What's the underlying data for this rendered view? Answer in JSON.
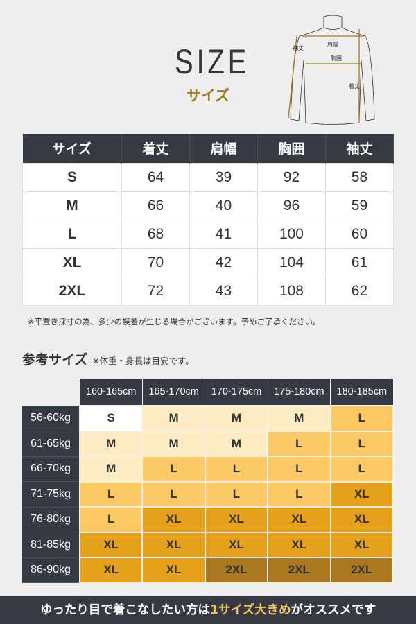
{
  "header": {
    "title": "SIZE",
    "subtitle": "サイズ"
  },
  "diagram": {
    "labels": {
      "shoulder": "肩幅",
      "chest": "胸囲",
      "length": "着丈",
      "sleeve": "袖丈"
    }
  },
  "size_table": {
    "columns": [
      "サイズ",
      "着丈",
      "肩幅",
      "胸囲",
      "袖丈"
    ],
    "rows": [
      [
        "S",
        "64",
        "39",
        "92",
        "58"
      ],
      [
        "M",
        "66",
        "40",
        "96",
        "59"
      ],
      [
        "L",
        "68",
        "41",
        "100",
        "60"
      ],
      [
        "XL",
        "70",
        "42",
        "104",
        "61"
      ],
      [
        "2XL",
        "72",
        "43",
        "108",
        "62"
      ]
    ]
  },
  "note": "※平置き採寸の為、多少の誤差が生じる場合がございます。予めご了承ください。",
  "reference": {
    "title": "参考サイズ",
    "note": "※体重・身長は目安です。",
    "heights": [
      "160-165cm",
      "165-170cm",
      "170-175cm",
      "175-180cm",
      "180-185cm"
    ],
    "rows": [
      {
        "weight": "56-60kg",
        "sizes": [
          "S",
          "M",
          "M",
          "M",
          "L"
        ]
      },
      {
        "weight": "61-65kg",
        "sizes": [
          "M",
          "M",
          "M",
          "L",
          "L"
        ]
      },
      {
        "weight": "66-70kg",
        "sizes": [
          "M",
          "L",
          "L",
          "L",
          "L"
        ]
      },
      {
        "weight": "71-75kg",
        "sizes": [
          "L",
          "L",
          "L",
          "L",
          "XL"
        ]
      },
      {
        "weight": "76-80kg",
        "sizes": [
          "L",
          "XL",
          "XL",
          "XL",
          "XL"
        ]
      },
      {
        "weight": "81-85kg",
        "sizes": [
          "XL",
          "XL",
          "XL",
          "XL",
          "XL"
        ]
      },
      {
        "weight": "86-90kg",
        "sizes": [
          "XL",
          "XL",
          "2XL",
          "2XL",
          "2XL"
        ]
      }
    ],
    "colors": {
      "S": "#ffffff",
      "M": "#fdebc4",
      "L": "#fbc863",
      "XL": "#e5a11a",
      "2XL": "#a9781f"
    }
  },
  "banner": {
    "before": "ゆったり目で着こなしたい方は",
    "highlight": "1サイズ大きめ",
    "after": "がオススメです"
  }
}
